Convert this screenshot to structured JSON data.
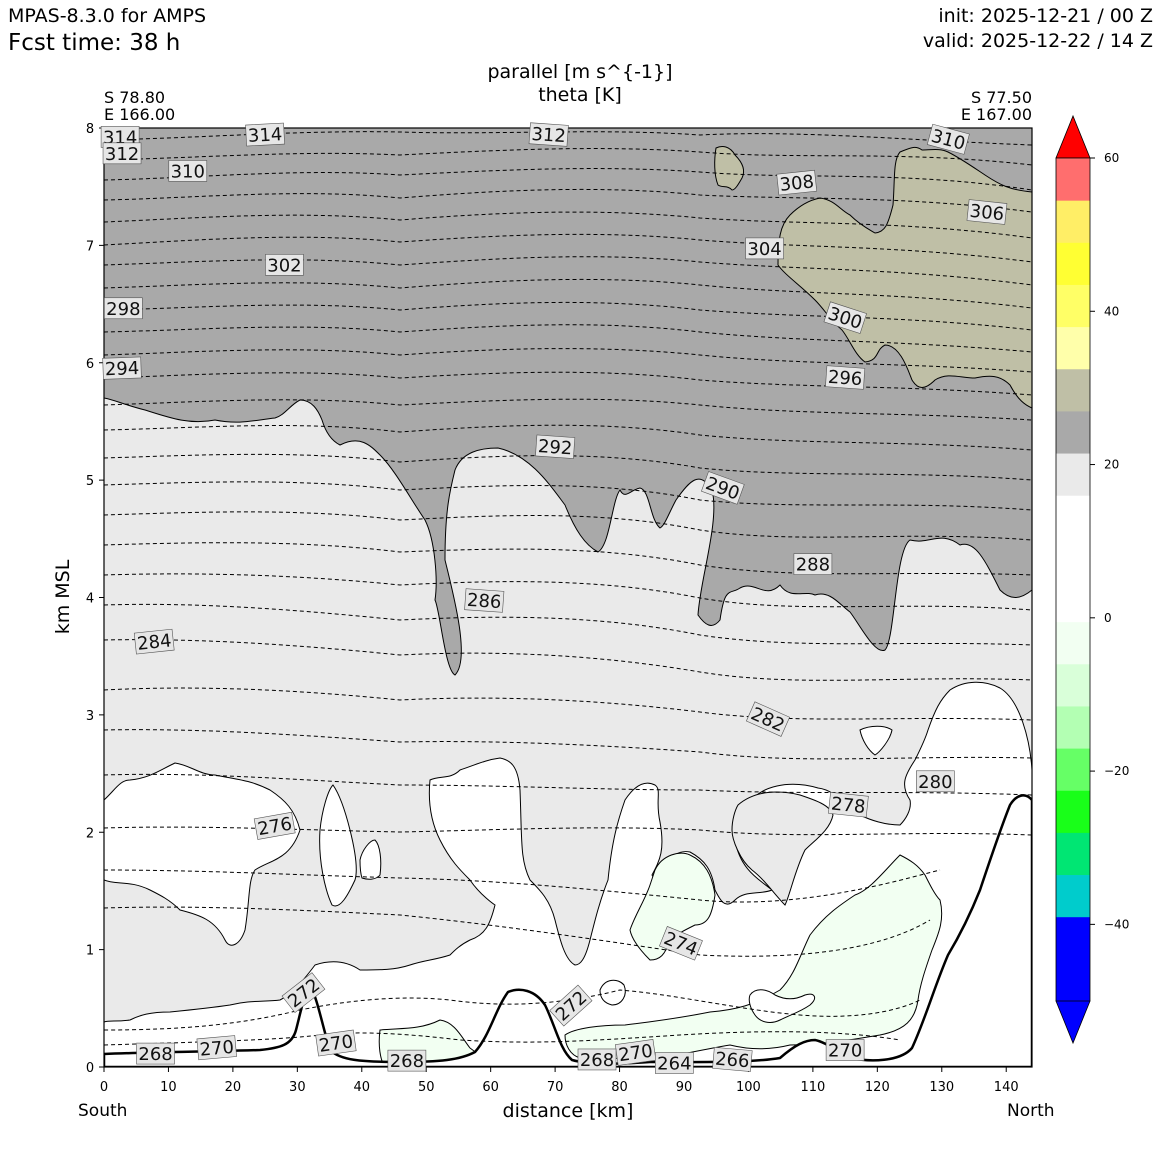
{
  "header": {
    "model": "MPAS-8.3.0 for AMPS",
    "fcst": "Fcst time:   38 h",
    "init": "init: 2025-12-21 / 00 Z",
    "valid": "valid: 2025-12-22 / 14 Z"
  },
  "chart_data": {
    "type": "area",
    "title": "parallel [m s^{-1}]",
    "subtitle": "theta [K]",
    "xlabel": "distance [km]",
    "ylabel": "km MSL",
    "xlim": [
      0,
      144
    ],
    "ylim": [
      0,
      8
    ],
    "xticks": [
      0,
      10,
      20,
      30,
      40,
      50,
      60,
      70,
      80,
      90,
      100,
      110,
      120,
      130,
      140
    ],
    "yticks": [
      0,
      1,
      2,
      3,
      4,
      5,
      6,
      7,
      8
    ],
    "endpoints": {
      "left": [
        "S 78.80",
        "E 166.00"
      ],
      "right": [
        "S 77.50",
        "E 167.00"
      ]
    },
    "directions": {
      "left": "South",
      "right": "North"
    },
    "colorbar": {
      "colors": [
        "#0000ff",
        "#0000ff",
        "#0000ff",
        "#00cccc",
        "#00e673",
        "#19ff19",
        "#66ff66",
        "#b3ffb3",
        "#d9ffd9",
        "#f2fff2",
        "#ffffff",
        "#ffffff",
        "#ffffff",
        "#eaeaea",
        "#a9a9a9",
        "#bfbfa6",
        "#ffffaa",
        "#ffff66",
        "#ffff33",
        "#ffee66",
        "#ff6e6e",
        "#ff0000"
      ],
      "ticks": [
        -40,
        -20,
        0,
        20,
        40,
        60
      ],
      "tick_labels": [
        "−40",
        "−20",
        "0",
        "20",
        "40",
        "60"
      ],
      "range": [
        -50,
        60
      ]
    },
    "shading_fills": {
      "gray_dark": "#a9a9a9",
      "gray_light": "#eaeaea",
      "tan": "#bfbfa6",
      "green_light": "#f2fff2",
      "white": "#ffffff"
    },
    "theta_labels": [
      {
        "text": "314",
        "x": 2.5,
        "y": 7.92,
        "rot": 0
      },
      {
        "text": "312",
        "x": 2.8,
        "y": 7.78,
        "rot": 0
      },
      {
        "text": "314",
        "x": 25.0,
        "y": 7.94,
        "rot": -3
      },
      {
        "text": "312",
        "x": 69.0,
        "y": 7.94,
        "rot": 4
      },
      {
        "text": "310",
        "x": 131.0,
        "y": 7.9,
        "rot": 15
      },
      {
        "text": "310",
        "x": 13.0,
        "y": 7.63,
        "rot": 0
      },
      {
        "text": "308",
        "x": 107.5,
        "y": 7.53,
        "rot": -6
      },
      {
        "text": "306",
        "x": 137.0,
        "y": 7.28,
        "rot": 6
      },
      {
        "text": "304",
        "x": 102.5,
        "y": 6.97,
        "rot": 0
      },
      {
        "text": "302",
        "x": 28.0,
        "y": 6.83,
        "rot": 0
      },
      {
        "text": "300",
        "x": 115.0,
        "y": 6.38,
        "rot": 18
      },
      {
        "text": "298",
        "x": 3.0,
        "y": 6.46,
        "rot": 0
      },
      {
        "text": "296",
        "x": 115.0,
        "y": 5.87,
        "rot": 4
      },
      {
        "text": "294",
        "x": 2.8,
        "y": 5.95,
        "rot": -2
      },
      {
        "text": "292",
        "x": 70.0,
        "y": 5.28,
        "rot": 4
      },
      {
        "text": "290",
        "x": 96.0,
        "y": 4.93,
        "rot": 20
      },
      {
        "text": "288",
        "x": 110.0,
        "y": 4.28,
        "rot": 0
      },
      {
        "text": "286",
        "x": 59.0,
        "y": 3.97,
        "rot": 4
      },
      {
        "text": "284",
        "x": 7.8,
        "y": 3.62,
        "rot": -6
      },
      {
        "text": "282",
        "x": 103.0,
        "y": 2.96,
        "rot": 24
      },
      {
        "text": "280",
        "x": 129.0,
        "y": 2.43,
        "rot": 0
      },
      {
        "text": "278",
        "x": 115.5,
        "y": 2.23,
        "rot": 6
      },
      {
        "text": "276",
        "x": 26.5,
        "y": 2.05,
        "rot": -10
      },
      {
        "text": "274",
        "x": 89.5,
        "y": 1.05,
        "rot": 22
      },
      {
        "text": "272",
        "x": 31.0,
        "y": 0.63,
        "rot": -38
      },
      {
        "text": "272",
        "x": 72.5,
        "y": 0.52,
        "rot": -42
      },
      {
        "text": "270",
        "x": 17.5,
        "y": 0.16,
        "rot": -5
      },
      {
        "text": "270",
        "x": 36.0,
        "y": 0.2,
        "rot": -8
      },
      {
        "text": "270",
        "x": 82.5,
        "y": 0.12,
        "rot": -8
      },
      {
        "text": "270",
        "x": 115.0,
        "y": 0.14,
        "rot": 0
      },
      {
        "text": "268",
        "x": 8.0,
        "y": 0.11,
        "rot": 0
      },
      {
        "text": "268",
        "x": 47.0,
        "y": 0.05,
        "rot": 0
      },
      {
        "text": "268",
        "x": 76.5,
        "y": 0.06,
        "rot": 0
      },
      {
        "text": "264",
        "x": 88.5,
        "y": 0.03,
        "rot": 0
      },
      {
        "text": "266",
        "x": 97.5,
        "y": 0.06,
        "rot": 5
      }
    ]
  }
}
